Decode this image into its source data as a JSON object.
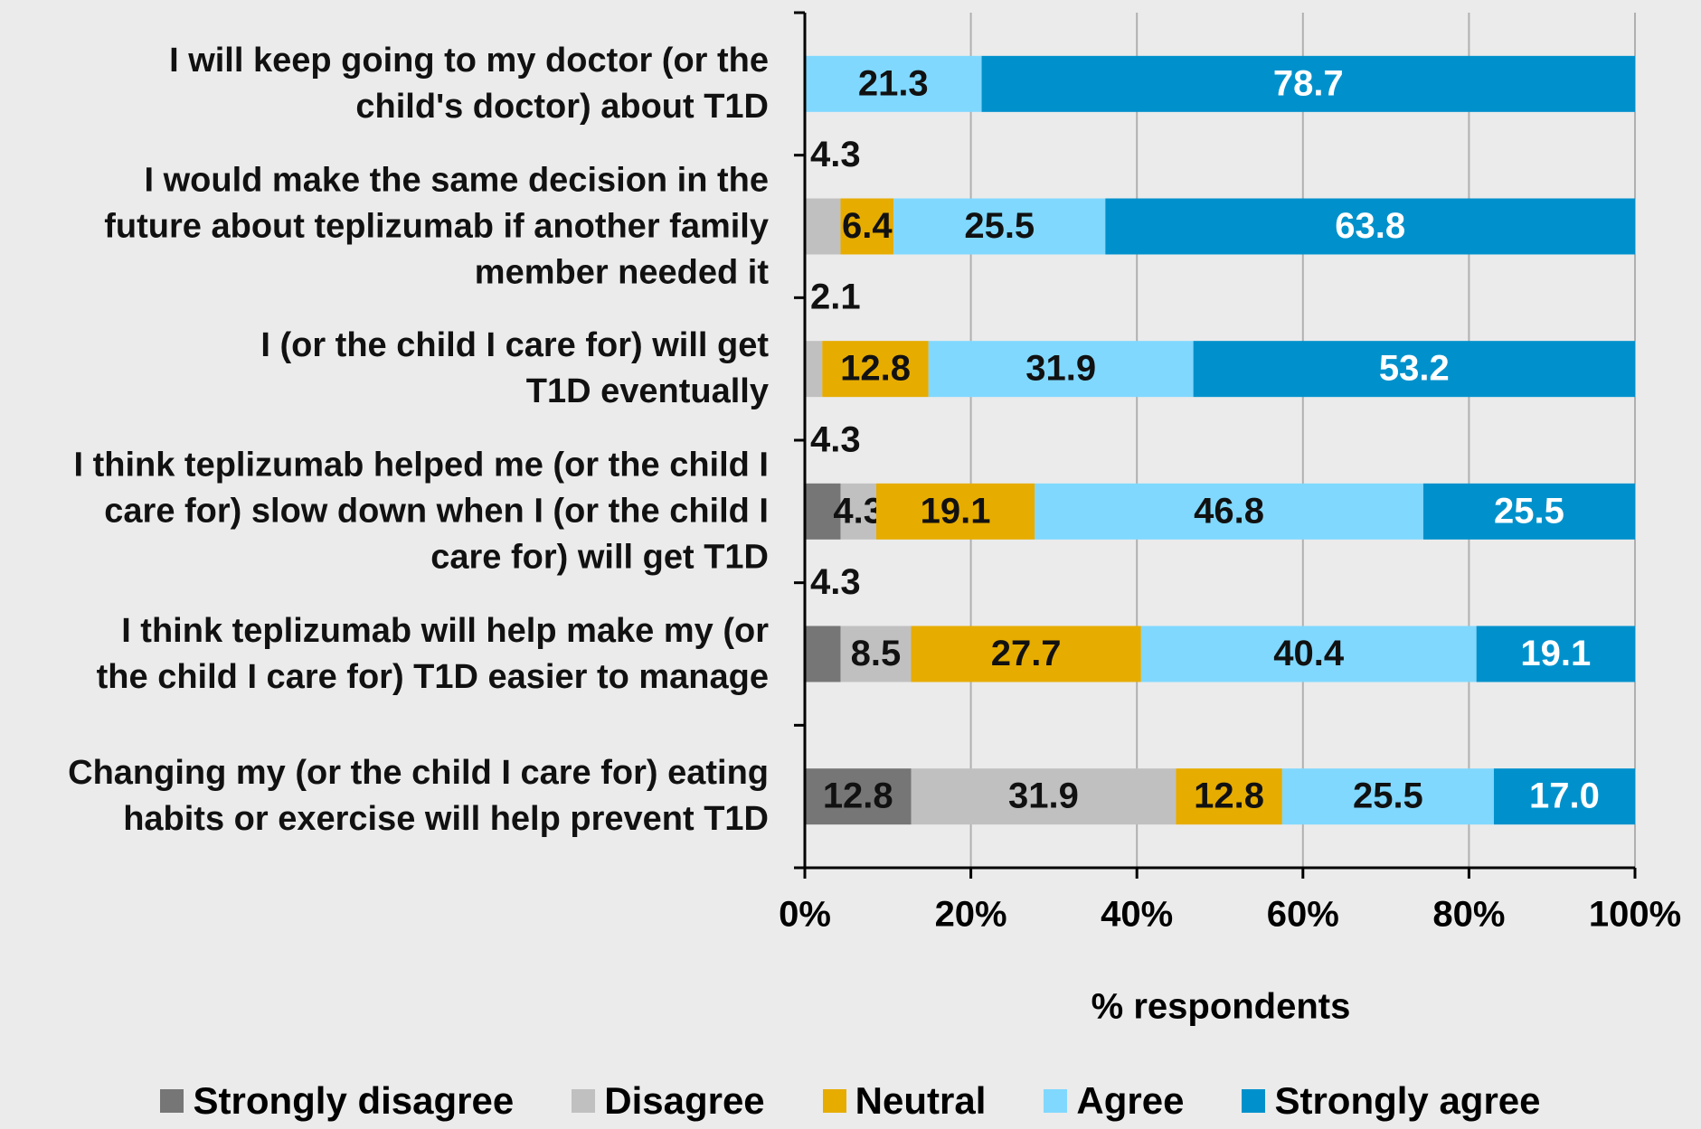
{
  "chart_data": {
    "type": "stacked-bar-horizontal",
    "categories": [
      "I will keep going to my doctor (or the\nchild's doctor) about T1D",
      "I would make the same decision in the\nfuture about teplizumab if another family\nmember needed it",
      "I (or the child I care for) will get\nT1D eventually",
      "I think teplizumab helped me (or the child I\ncare for) slow down when I (or the child I\ncare for) will get T1D",
      "I think teplizumab will help make my (or\nthe child I care for) T1D easier to manage",
      "Changing my (or the child I care for) eating\nhabits or exercise will help prevent T1D"
    ],
    "series": [
      {
        "name": "Strongly disagree",
        "color": "#767676",
        "values": [
          null,
          null,
          null,
          4.3,
          4.3,
          12.8
        ]
      },
      {
        "name": "Disagree",
        "color": "#c0c0c0",
        "values": [
          null,
          4.3,
          2.1,
          4.3,
          8.5,
          31.9
        ]
      },
      {
        "name": "Neutral",
        "color": "#e6ac00",
        "values": [
          null,
          6.4,
          12.8,
          19.1,
          27.7,
          12.8
        ]
      },
      {
        "name": "Agree",
        "color": "#80d8ff",
        "values": [
          21.3,
          25.5,
          31.9,
          46.8,
          40.4,
          25.5
        ]
      },
      {
        "name": "Strongly agree",
        "color": "#0091cc",
        "values": [
          78.7,
          63.8,
          53.2,
          25.5,
          19.1,
          17
        ],
        "value_labels": [
          "78.7",
          "63.8",
          "53.2",
          "25.5",
          "19.1",
          "17.0"
        ]
      }
    ],
    "x_label": "% respondents",
    "xlim": [
      0,
      100
    ],
    "xticks": [
      {
        "value": 0,
        "label": "0%"
      },
      {
        "value": 20,
        "label": "20%"
      },
      {
        "value": 40,
        "label": "40%"
      },
      {
        "value": 60,
        "label": "60%"
      },
      {
        "value": 80,
        "label": "80%"
      },
      {
        "value": 100,
        "label": "100%"
      }
    ],
    "grid": true
  }
}
